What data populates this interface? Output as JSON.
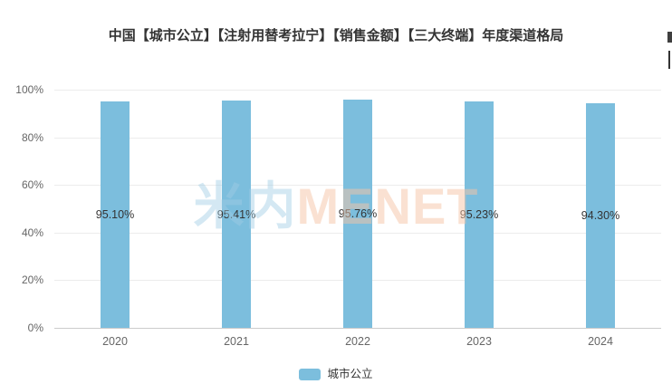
{
  "header": {
    "title": "中国【城市公立】【注射用替考拉宁】【销售金额】【三大终端】年度渠道格局"
  },
  "chart_data": {
    "type": "bar",
    "title": "中国【城市公立】【注射用替考拉宁】【销售金额】【三大终端】年度渠道格局",
    "categories": [
      "2020",
      "2021",
      "2022",
      "2023",
      "2024"
    ],
    "series": [
      {
        "name": "城市公立",
        "values": [
          95.1,
          95.41,
          95.76,
          95.23,
          94.3
        ]
      }
    ],
    "value_labels": [
      "95.10%",
      "95.41%",
      "95.76%",
      "95.23%",
      "94.30%"
    ],
    "xlabel": "",
    "ylabel": "",
    "ylim": [
      0,
      100
    ],
    "ytick_labels": [
      "100%",
      "80%",
      "60%",
      "40%",
      "20%",
      "0%"
    ],
    "grid": true,
    "legend_position": "bottom",
    "label_position": "inside-middle"
  },
  "legend": {
    "items": [
      {
        "label": "城市公立",
        "color": "#7cbedd"
      }
    ]
  },
  "watermark": {
    "cn": "米内",
    "en": "MENET"
  },
  "colors": {
    "bar": "#7cbedd",
    "grid_line": "#ececec",
    "axis_line": "#cccccc",
    "tick_text": "#666666",
    "data_label_text": "#333333",
    "title_text": "#333333"
  }
}
